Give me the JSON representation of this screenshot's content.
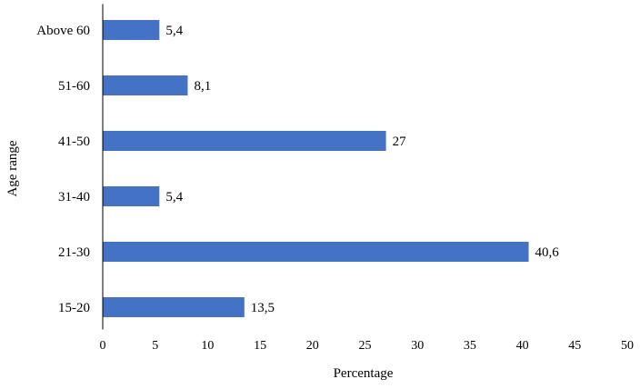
{
  "chart_data": {
    "type": "bar",
    "orientation": "horizontal",
    "categories": [
      "Above 60",
      "51-60",
      "41-50",
      "31-40",
      "21-30",
      "15-20"
    ],
    "values": [
      5.4,
      8.1,
      27,
      5.4,
      40.6,
      13.5
    ],
    "value_labels": [
      "5,4",
      "8,1",
      "27",
      "5,4",
      "40,6",
      "13,5"
    ],
    "title": "",
    "xlabel": "Percentage",
    "ylabel": "Age range",
    "xlim": [
      0,
      50
    ],
    "xticks": [
      "0",
      "5",
      "10",
      "15",
      "20",
      "25",
      "30",
      "35",
      "40",
      "45",
      "50"
    ],
    "grid": false,
    "legend": "none",
    "bar_color": "#4472C4"
  }
}
